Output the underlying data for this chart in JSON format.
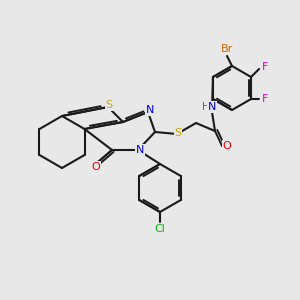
{
  "background_color": "#e8e8e8",
  "bond_color": "#1a1a1a",
  "atom_colors": {
    "S": "#ccaa00",
    "N": "#0000ee",
    "O": "#ee0000",
    "Br": "#cc6600",
    "F": "#ee00aa",
    "Cl": "#00bb00",
    "H": "#008888"
  },
  "figsize": [
    3.0,
    3.0
  ],
  "dpi": 100
}
